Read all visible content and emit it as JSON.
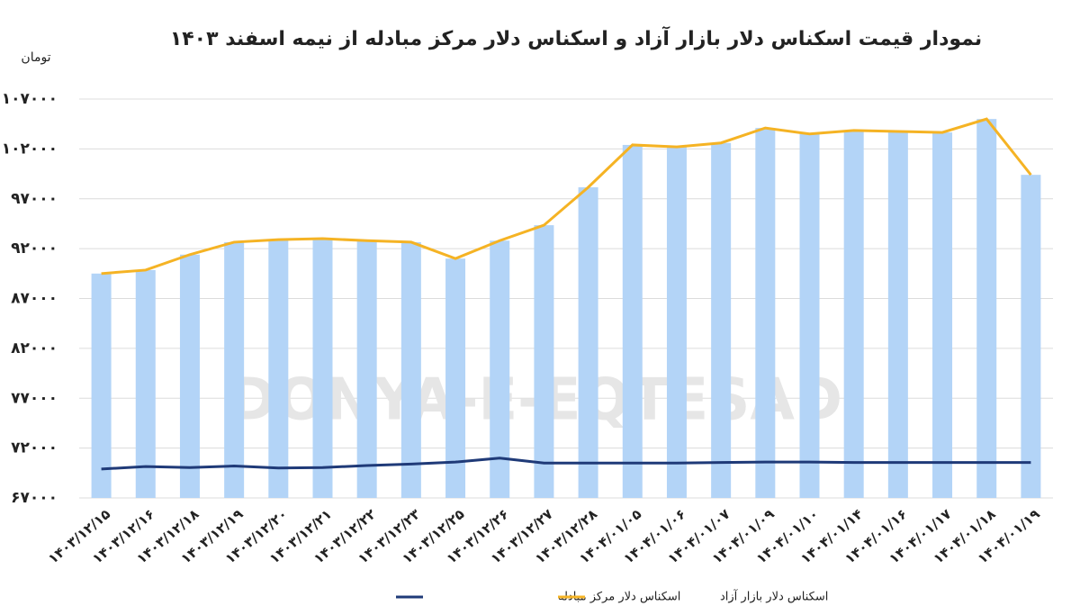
{
  "chart_data": {
    "type": "bar-line",
    "title": "نمودار قیمت اسکناس دلار بازار آزاد و اسکناس دلار مرکز مبادله از نیمه اسفند ۱۴۰۳",
    "y_label": "تومان",
    "watermark": "DONYA-E-EQTESAD",
    "categories": [
      "۱۴۰۳/۱۲/۱۵",
      "۱۴۰۳/۱۲/۱۶",
      "۱۴۰۳/۱۲/۱۸",
      "۱۴۰۳/۱۲/۱۹",
      "۱۴۰۳/۱۲/۲۰",
      "۱۴۰۳/۱۲/۲۱",
      "۱۴۰۳/۱۲/۲۲",
      "۱۴۰۳/۱۲/۲۳",
      "۱۴۰۳/۱۲/۲۵",
      "۱۴۰۳/۱۲/۲۶",
      "۱۴۰۳/۱۲/۲۷",
      "۱۴۰۳/۱۲/۲۸",
      "۱۴۰۴/۰۱/۰۵",
      "۱۴۰۴/۰۱/۰۶",
      "۱۴۰۴/۰۱/۰۷",
      "۱۴۰۴/۰۱/۰۹",
      "۱۴۰۴/۰۱/۱۰",
      "۱۴۰۴/۰۱/۱۴",
      "۱۴۰۴/۰۱/۱۶",
      "۱۴۰۴/۰۱/۱۷",
      "۱۴۰۴/۰۱/۱۸",
      "۱۴۰۴/۰۱/۱۹"
    ],
    "bar_color": "#b3d4f7",
    "series": [
      {
        "name": "اسکناس دلار مرکز مبادله",
        "color": "#1f3a78",
        "values": [
          69900,
          70150,
          70050,
          70200,
          70000,
          70050,
          70250,
          70400,
          70600,
          71000,
          70500,
          70500,
          70500,
          70500,
          70550,
          70600,
          70600,
          70550,
          70550,
          70550,
          70550,
          70550
        ]
      },
      {
        "name": "اسکناس دلار بازار آزاد",
        "color": "#f5b324",
        "values": [
          89500,
          89850,
          91400,
          92650,
          92900,
          93000,
          92800,
          92650,
          91000,
          92800,
          94350,
          98150,
          102400,
          102200,
          102600,
          104100,
          103500,
          103850,
          103750,
          103650,
          105000,
          99400
        ]
      }
    ],
    "bars_series": 1,
    "ylim": [
      67000,
      107000
    ],
    "yticks": [
      {
        "value": 67000,
        "label": "۶۷۰۰۰"
      },
      {
        "value": 72000,
        "label": "۷۲۰۰۰"
      },
      {
        "value": 77000,
        "label": "۷۷۰۰۰"
      },
      {
        "value": 82000,
        "label": "۸۲۰۰۰"
      },
      {
        "value": 87000,
        "label": "۸۷۰۰۰"
      },
      {
        "value": 92000,
        "label": "۹۲۰۰۰"
      },
      {
        "value": 97000,
        "label": "۹۷۰۰۰"
      },
      {
        "value": 102000,
        "label": "۱۰۲۰۰۰"
      },
      {
        "value": 107000,
        "label": "۱۰۷۰۰۰"
      }
    ],
    "grid": true
  }
}
